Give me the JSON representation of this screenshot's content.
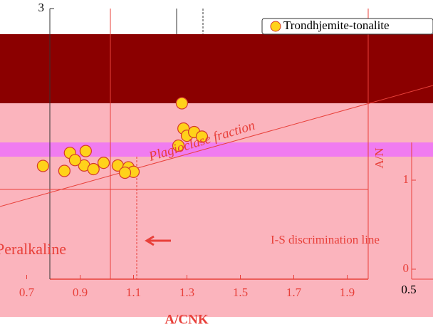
{
  "chart_data": {
    "type": "scatter",
    "x_label": "A/CNK",
    "xlim": [
      0.6,
      2.0
    ],
    "xticks": [
      0.7,
      0.9,
      1.1,
      1.3,
      1.5,
      1.7,
      1.9
    ],
    "ylim": [
      0,
      3
    ],
    "yticks": [
      3
    ],
    "series": [
      {
        "name": "Trondhjemite-tonalite",
        "color": "#ffd21a",
        "edge": "#d43a2a",
        "x": [
          0.761,
          0.841,
          0.862,
          0.915,
          0.95,
          0.988,
          1.041,
          1.081,
          1.1,
          1.068,
          1.287,
          1.3,
          1.327,
          1.356,
          1.281,
          1.268,
          0.881,
          0.921
        ],
        "values": [
          1.255,
          1.2,
          1.4,
          1.26,
          1.22,
          1.29,
          1.26,
          1.24,
          1.19,
          1.18,
          1.67,
          1.59,
          1.63,
          1.58,
          1.95,
          1.48,
          1.32,
          1.42
        ]
      }
    ],
    "annotations": [
      "Peralkaline",
      "I-S discrimination line",
      "Plagioclase fraction"
    ],
    "inset": {
      "ylabel": "A/N",
      "xlim": [
        0.5,
        1.0
      ],
      "xticks": [
        0.5
      ],
      "ylim": [
        0,
        1
      ],
      "yticks": [
        0,
        1
      ]
    }
  }
}
